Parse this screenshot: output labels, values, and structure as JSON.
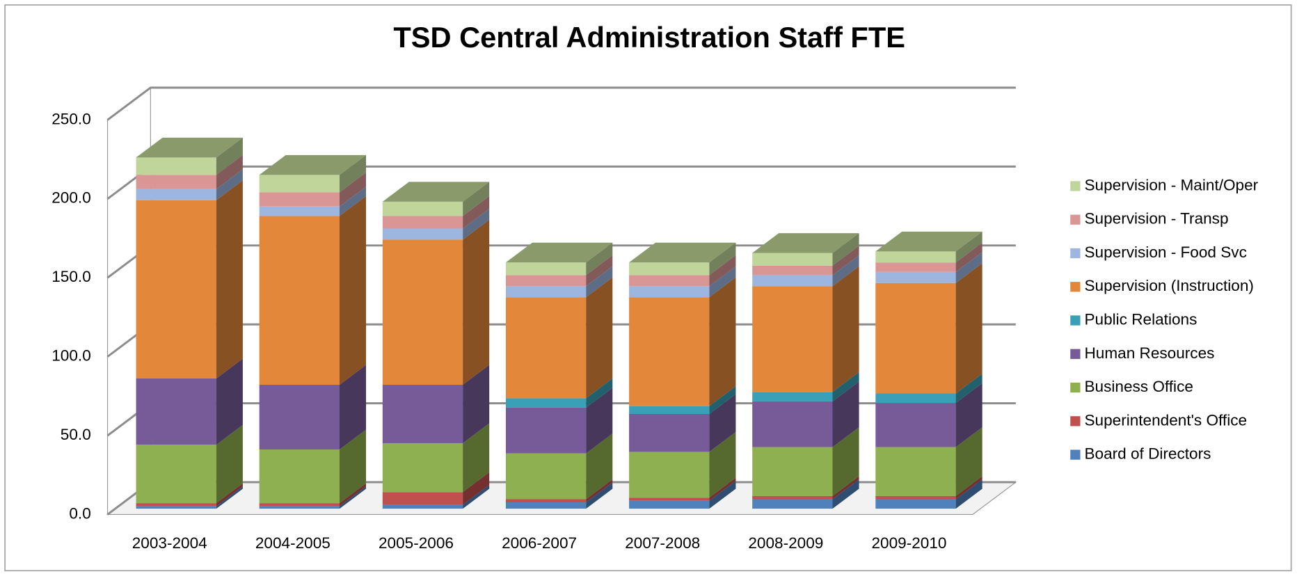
{
  "chart_data": {
    "type": "bar3d_stacked",
    "title": "TSD Central Administration Staff FTE",
    "categories": [
      "2003-2004",
      "2004-2005",
      "2005-2006",
      "2006-2007",
      "2007-2008",
      "2008-2009",
      "2009-2010"
    ],
    "series": [
      {
        "name": "Board of Directors",
        "color": "#4f81bd",
        "values": [
          1.5,
          1.5,
          2.5,
          4,
          5,
          6,
          6
        ]
      },
      {
        "name": "Superintendent's Office",
        "color": "#c0504d",
        "values": [
          2,
          2,
          8,
          2,
          2,
          2,
          2
        ]
      },
      {
        "name": "Business Office",
        "color": "#8fb050",
        "values": [
          37,
          34,
          31,
          29,
          29,
          31,
          31
        ]
      },
      {
        "name": "Human Resources",
        "color": "#765b98",
        "values": [
          42,
          41,
          37,
          29,
          24,
          29,
          28
        ]
      },
      {
        "name": "Public Relations",
        "color": "#3aa0b8",
        "values": [
          0,
          0,
          0,
          6,
          5,
          6,
          6
        ]
      },
      {
        "name": "Supervision (Instruction)",
        "color": "#e3873a",
        "values": [
          113,
          107,
          92,
          64,
          69,
          67,
          70
        ]
      },
      {
        "name": "Supervision - Food Svc",
        "color": "#9db6df",
        "values": [
          7,
          6,
          7,
          7,
          7,
          7,
          7
        ]
      },
      {
        "name": "Supervision - Transp",
        "color": "#d99694",
        "values": [
          9,
          9,
          8,
          7,
          7,
          6,
          6
        ]
      },
      {
        "name": "Supervision - Maint/Oper",
        "color": "#bfd59a",
        "values": [
          11,
          11,
          9,
          8,
          8,
          8,
          7
        ]
      }
    ],
    "ylim": [
      0,
      250
    ],
    "yticks": [
      {
        "value": 0,
        "label": "0.0"
      },
      {
        "value": 50,
        "label": "50.0"
      },
      {
        "value": 100,
        "label": "100.0"
      },
      {
        "value": 150,
        "label": "150.0"
      },
      {
        "value": 200,
        "label": "200.0"
      },
      {
        "value": 250,
        "label": "250.0"
      }
    ],
    "grid": true,
    "legend": "right"
  }
}
